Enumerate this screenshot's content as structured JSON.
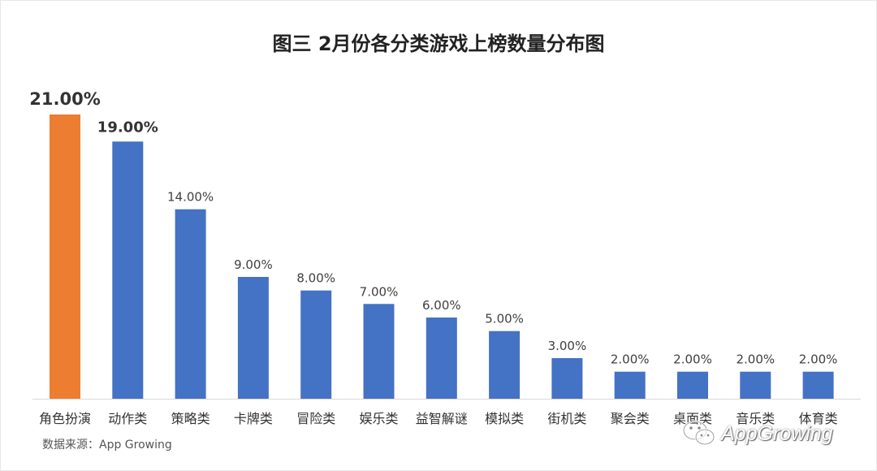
{
  "chart_data": {
    "type": "bar",
    "title": "图三 2月份各分类游戏上榜数量分布图",
    "categories": [
      "角色扮演",
      "动作类",
      "策略类",
      "卡牌类",
      "冒险类",
      "娱乐类",
      "益智解谜",
      "模拟类",
      "街机类",
      "聚会类",
      "桌面类",
      "音乐类",
      "体育类"
    ],
    "values": [
      21,
      19,
      14,
      9,
      8,
      7,
      6,
      5,
      3,
      2,
      2,
      2,
      2
    ],
    "data_labels": [
      "21.00%",
      "19.00%",
      "14.00%",
      "9.00%",
      "8.00%",
      "7.00%",
      "6.00%",
      "5.00%",
      "3.00%",
      "2.00%",
      "2.00%",
      "2.00%",
      "2.00%"
    ],
    "unit": "%",
    "ylim": [
      0,
      21
    ],
    "grid": false,
    "legend": "none",
    "colors": {
      "default_bar": "#4472C4",
      "highlight_bar": "#ED7D31",
      "baseline": "#d9d9d9",
      "label_text": "#404040"
    },
    "highlight_index": 0,
    "bold_label_indices": [
      0,
      1
    ]
  },
  "footer": {
    "source": "数据来源：App Growing"
  },
  "watermark": {
    "icon": "wechat-icon",
    "text": "AppGrowing"
  }
}
